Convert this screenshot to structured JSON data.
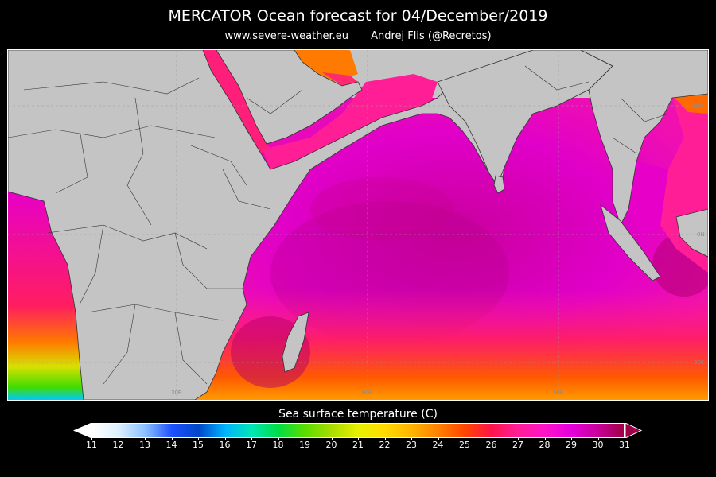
{
  "title": "MERCATOR Ocean forecast for 04/December/2019",
  "subtitle": {
    "website": "www.severe-weather.eu",
    "author": "Andrej Flis (@Recretos)"
  },
  "map": {
    "grid_labels": [
      "10N",
      "0N",
      "20S",
      "30E",
      "60E",
      "90E"
    ]
  },
  "legend": {
    "title": "Sea surface temperature (C)",
    "min": 11,
    "max": 31,
    "ticks": [
      "11",
      "12",
      "13",
      "14",
      "15",
      "16",
      "17",
      "18",
      "19",
      "20",
      "21",
      "22",
      "23",
      "24",
      "25",
      "26",
      "27",
      "28",
      "29",
      "30",
      "31"
    ],
    "colors": [
      "#ffffff",
      "#dcf0ff",
      "#8ac0ff",
      "#1e50ff",
      "#0046c8",
      "#00b4ff",
      "#00e6b4",
      "#00dc46",
      "#5adc00",
      "#aadc00",
      "#e6f000",
      "#ffdc00",
      "#ffb400",
      "#ff8200",
      "#ff4600",
      "#ff1446",
      "#ff1e96",
      "#ff14c8",
      "#e600dc",
      "#c8009c",
      "#a00046"
    ]
  }
}
